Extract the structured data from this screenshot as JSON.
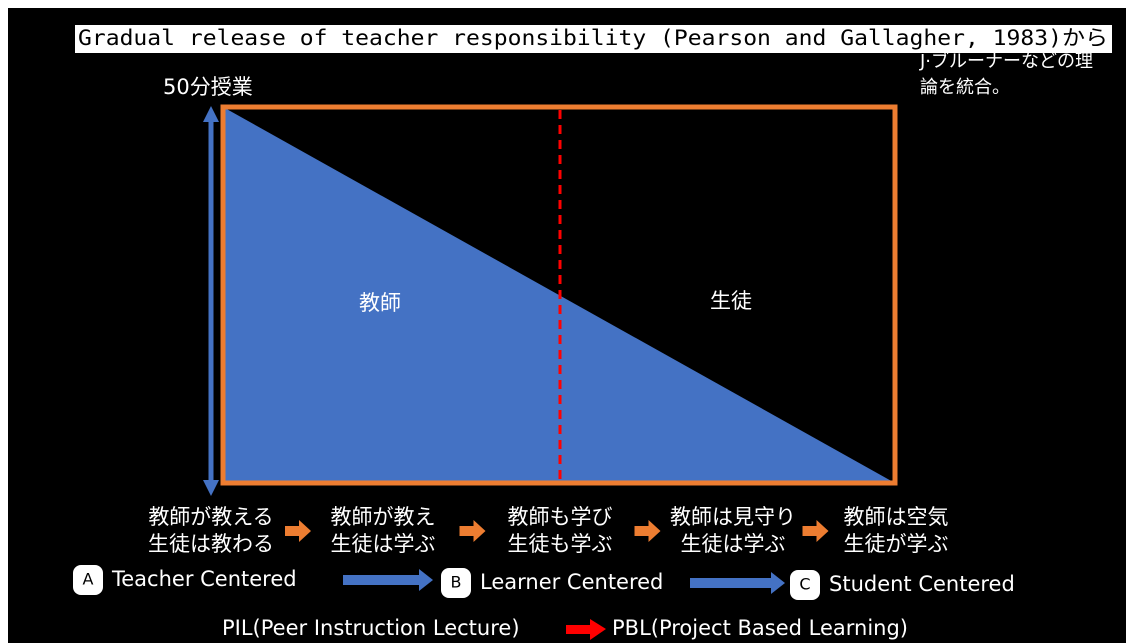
{
  "header": {
    "title": "Gradual release of teacher responsibility (Pearson and Gallagher, 1983)から",
    "note_lines": [
      "J·ブルーナーなどの理",
      "論を統合。"
    ]
  },
  "diagram": {
    "axis_label": "50分授業",
    "teacher_label": "教師",
    "student_label": "生徒"
  },
  "stages": [
    [
      "教師が教える",
      "生徒は教わる"
    ],
    [
      "教師が教え",
      "生徒は学ぶ"
    ],
    [
      "教師も学び",
      "生徒も学ぶ"
    ],
    [
      "教師は見守り",
      "生徒は学ぶ"
    ],
    [
      "教師は空気",
      "生徒が学ぶ"
    ]
  ],
  "approaches": [
    {
      "letter": "A",
      "label": "Teacher Centered"
    },
    {
      "letter": "B",
      "label": "Learner Centered"
    },
    {
      "letter": "C",
      "label": "Student Centered"
    }
  ],
  "footer": {
    "from": "PIL(Peer Instruction Lecture)",
    "to": "PBL(Project Based Learning)"
  }
}
